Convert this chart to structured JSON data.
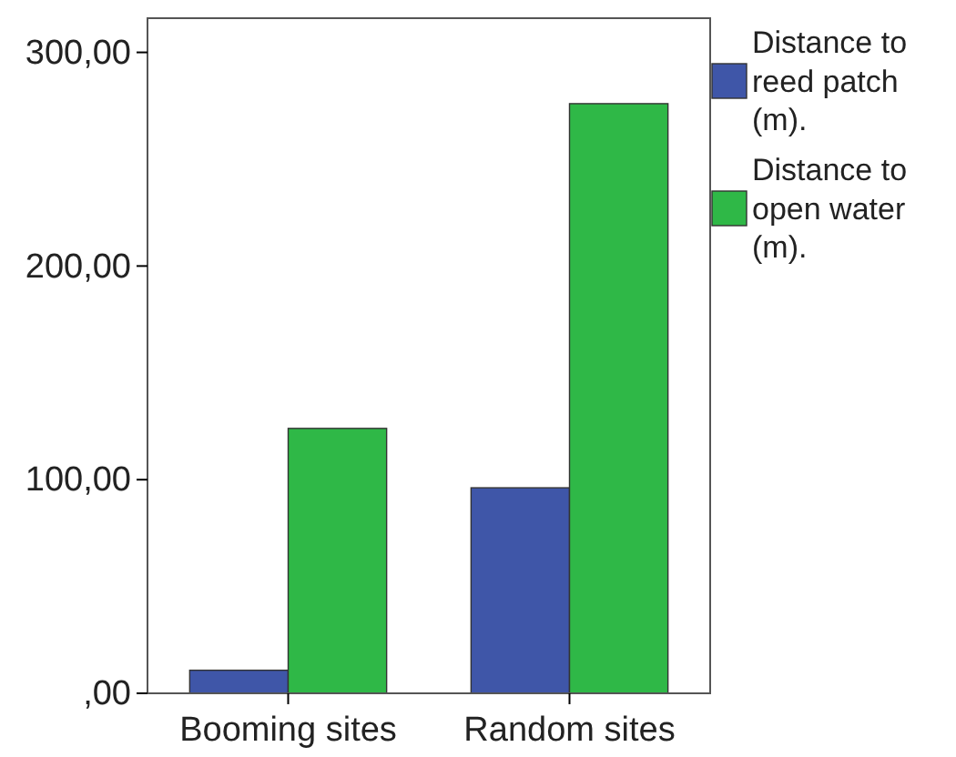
{
  "chart_data": {
    "type": "bar",
    "categories": [
      "Booming sites",
      "Random sites"
    ],
    "series": [
      {
        "name": "Distance to reed patch (m).",
        "color": "#3f56a8",
        "values": [
          10.8,
          96.2
        ]
      },
      {
        "name": "Distance to open water (m).",
        "color": "#2fb847",
        "values": [
          124,
          276
        ]
      }
    ],
    "ylim": [
      0,
      316
    ],
    "yticks": [
      {
        "value": 0,
        "label": ",00"
      },
      {
        "value": 100,
        "label": "100,00"
      },
      {
        "value": 200,
        "label": "200,00"
      },
      {
        "value": 300,
        "label": "300,00"
      }
    ],
    "legend": "right",
    "grid": false
  }
}
